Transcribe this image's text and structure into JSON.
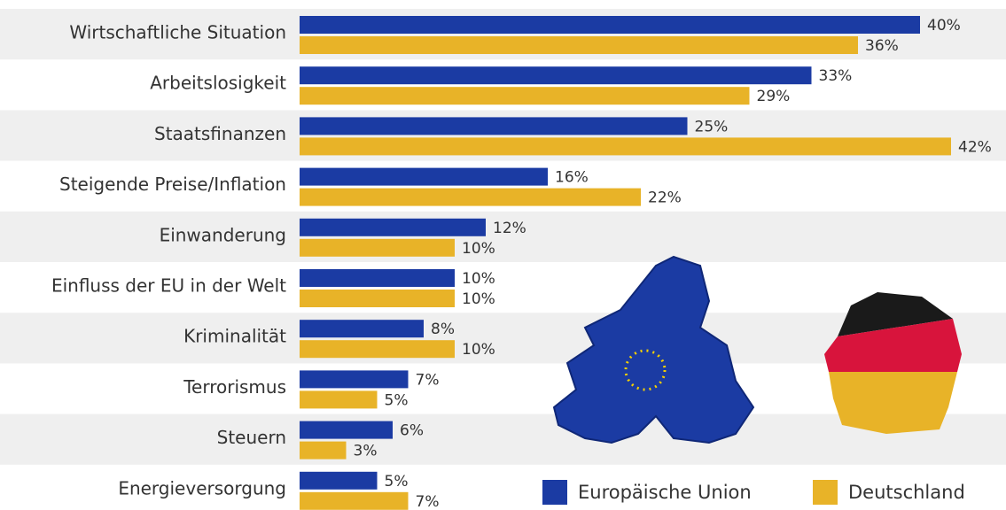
{
  "chart_data": {
    "type": "bar",
    "orientation": "horizontal",
    "categories": [
      "Wirtschaftliche Situation",
      "Arbeitslosigkeit",
      "Staatsfinanzen",
      "Steigende Preise/Inflation",
      "Einwanderung",
      "Einfluss der EU in der Welt",
      "Kriminalität",
      "Terrorismus",
      "Steuern",
      "Energieversorgung"
    ],
    "series": [
      {
        "name": "Europäische Union",
        "color": "#1b3ba3",
        "values": [
          40,
          33,
          25,
          16,
          12,
          10,
          8,
          7,
          6,
          5
        ],
        "value_labels": [
          "40%",
          "33%",
          "25%",
          "16%",
          "12%",
          "10%",
          "8%",
          "7%",
          "6%",
          "5%"
        ]
      },
      {
        "name": "Deutschland",
        "color": "#e8b328",
        "values": [
          36,
          29,
          42,
          22,
          10,
          10,
          10,
          5,
          3,
          7
        ],
        "value_labels": [
          "36%",
          "29%",
          "42%",
          "22%",
          "10%",
          "10%",
          "10%",
          "5%",
          "3%",
          "7%"
        ]
      }
    ],
    "legend": "bottom-right"
  }
}
